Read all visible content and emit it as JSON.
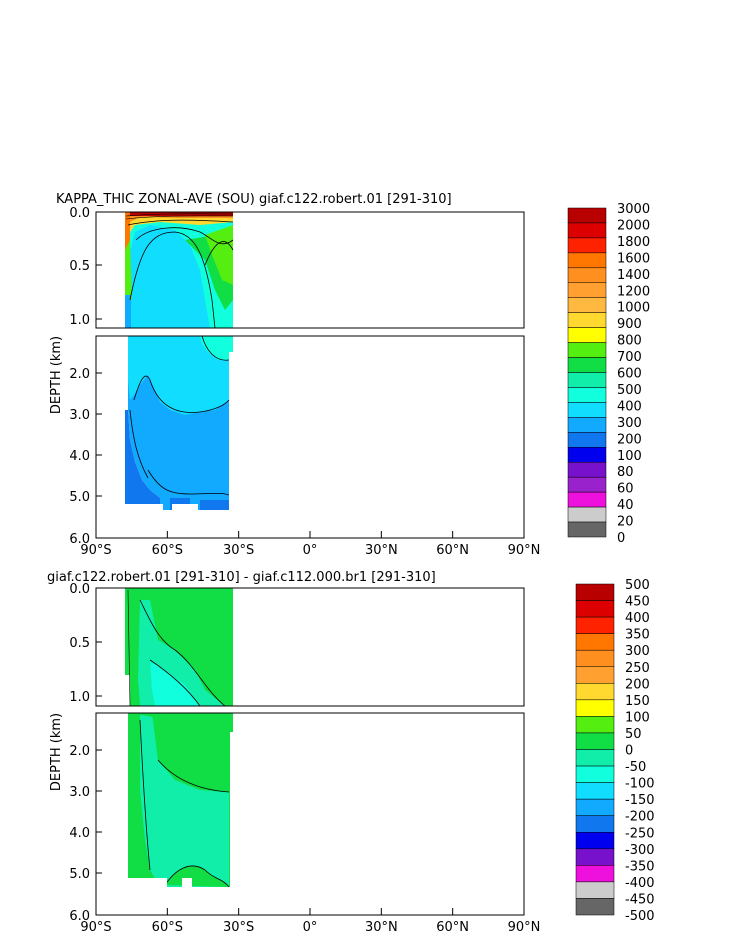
{
  "chart_data": [
    {
      "type": "heatmap",
      "title": "KAPPA_THIC ZONAL-AVE (SOU) giaf.c122.robert.01 [291-310]",
      "ylabel": "DEPTH (km)",
      "xlim": [
        -90,
        90
      ],
      "ylim": [
        0,
        6
      ],
      "upper_yticks": [
        "0.0",
        "0.5",
        "1.0"
      ],
      "lower_yticks": [
        "2.0",
        "3.0",
        "4.0",
        "5.0",
        "6.0"
      ],
      "xticks": [
        "90°S",
        "60°S",
        "30°S",
        "0°",
        "30°N",
        "60°N",
        "90°N"
      ],
      "colorbar_levels": [
        "3000",
        "2000",
        "1800",
        "1600",
        "1400",
        "1200",
        "1000",
        "900",
        "800",
        "700",
        "600",
        "500",
        "400",
        "300",
        "200",
        "100",
        "80",
        "60",
        "40",
        "20",
        "0"
      ],
      "colorbar_colors": [
        "#b80000",
        "#dd0000",
        "#ff2200",
        "#ff7700",
        "#ff8f1e",
        "#ffa030",
        "#ffb840",
        "#ffd830",
        "#ffff00",
        "#55ee11",
        "#11dd44",
        "#11eeaa",
        "#11ffdd",
        "#11ddff",
        "#11aaff",
        "#1177ee",
        "#0000ee",
        "#7711cc",
        "#9922cc",
        "#ee11dd",
        "#cccccc",
        "#666666"
      ]
    },
    {
      "type": "heatmap",
      "title": "giaf.c122.robert.01 [291-310] - giaf.c112.000.br1 [291-310]",
      "ylabel": "DEPTH (km)",
      "xlim": [
        -90,
        90
      ],
      "ylim": [
        0,
        6
      ],
      "upper_yticks": [
        "0.0",
        "0.5",
        "1.0"
      ],
      "lower_yticks": [
        "2.0",
        "3.0",
        "4.0",
        "5.0",
        "6.0"
      ],
      "xticks": [
        "90°S",
        "60°S",
        "30°S",
        "0°",
        "30°N",
        "60°N",
        "90°N"
      ],
      "colorbar_levels": [
        "500",
        "450",
        "400",
        "350",
        "300",
        "250",
        "200",
        "150",
        "100",
        "50",
        "0",
        "-50",
        "-100",
        "-150",
        "-200",
        "-250",
        "-300",
        "-350",
        "-400",
        "-450",
        "-500"
      ],
      "colorbar_colors": [
        "#b80000",
        "#dd0000",
        "#ff2200",
        "#ff7700",
        "#ff8f1e",
        "#ffa030",
        "#ffd830",
        "#ffff00",
        "#55ee11",
        "#11dd44",
        "#11eeaa",
        "#11ffdd",
        "#11ddff",
        "#11aaff",
        "#1177ee",
        "#0000ee",
        "#7711cc",
        "#ee11dd",
        "#cccccc",
        "#666666"
      ]
    }
  ]
}
